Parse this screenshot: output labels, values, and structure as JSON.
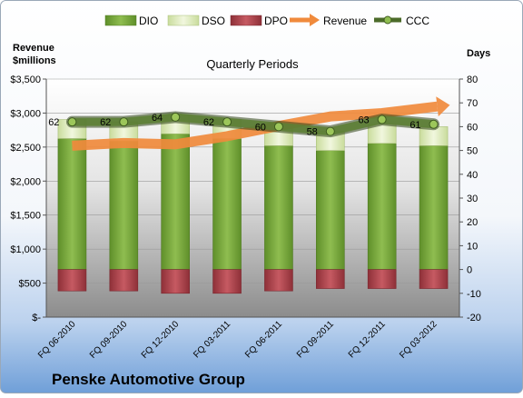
{
  "chart_data": {
    "type": "bar",
    "title": "Quarterly Periods",
    "subtitle": "",
    "company": "Penske Automotive Group",
    "left_axis_label_line1": "Revenue",
    "left_axis_label_line2": "$millions",
    "right_axis_label": "Days",
    "left_ticks": [
      "$3,500",
      "$3,000",
      "$2,500",
      "$2,000",
      "$1,500",
      "$1,000",
      "$500",
      "$-"
    ],
    "left_ylim": [
      0,
      3500
    ],
    "right_ticks": [
      "80",
      "70",
      "60",
      "50",
      "40",
      "30",
      "20",
      "10",
      "0",
      "-10",
      "-20"
    ],
    "right_ylim": [
      -20,
      80
    ],
    "categories": [
      "FQ 06-2010",
      "FQ 09-2010",
      "FQ 12-2010",
      "FQ 03-2011",
      "FQ 06-2011",
      "FQ 09-2011",
      "FQ 12-2011",
      "FQ 03-2012"
    ],
    "legend": [
      "DIO",
      "DSO",
      "DPO",
      "Revenue",
      "CCC"
    ],
    "legend_position": "top",
    "series": [
      {
        "name": "DIO",
        "axis": "right",
        "values": [
          55,
          54,
          57,
          55,
          52,
          50,
          53,
          52
        ],
        "color": "#77a83a"
      },
      {
        "name": "DSO",
        "axis": "right",
        "values": [
          8,
          8,
          8,
          8,
          8,
          8,
          8,
          8
        ],
        "color": "#e2eec4"
      },
      {
        "name": "DPO",
        "axis": "right",
        "values": [
          -9,
          -9,
          -10,
          -10,
          -9,
          -8,
          -8,
          -8
        ],
        "color": "#b04a52"
      },
      {
        "name": "Revenue",
        "axis": "left",
        "values": [
          2520,
          2560,
          2540,
          2660,
          2810,
          2950,
          3000,
          3090
        ],
        "color": "#f08a3c"
      },
      {
        "name": "CCC",
        "axis": "right",
        "values": [
          62,
          62,
          64,
          62,
          60,
          58,
          63,
          61
        ],
        "color": "#4c6b2a"
      }
    ],
    "ccc_labels": [
      "62",
      "62",
      "64",
      "62",
      "60",
      "58",
      "63",
      "61"
    ],
    "grid": true
  }
}
